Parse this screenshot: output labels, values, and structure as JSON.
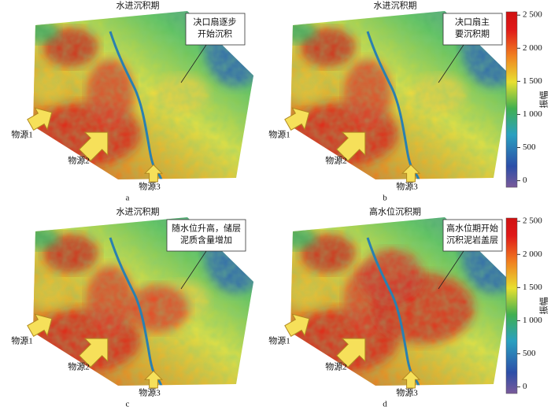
{
  "panels": [
    {
      "title": "水进沉积期",
      "callout": [
        "决口扇逐步",
        "开始沉积"
      ],
      "sources": [
        "物源1",
        "物源2",
        "物源3"
      ],
      "label": "a"
    },
    {
      "title": "水进沉积期",
      "callout": [
        "决口扇主",
        "要沉积期"
      ],
      "sources": [
        "物源1",
        "物源2",
        "物源3"
      ],
      "label": "b"
    },
    {
      "title": "水进沉积期",
      "callout": [
        "随水位升高，储层",
        "泥质含量增加"
      ],
      "sources": [
        "物源1",
        "物源2",
        "物源3"
      ],
      "label": "c"
    },
    {
      "title": "高水位沉积期",
      "callout": [
        "高水位期开始",
        "沉积泥岩盖层"
      ],
      "sources": [
        "物源1",
        "物源2",
        "物源3"
      ],
      "label": "d"
    }
  ],
  "colorbars": [
    {
      "label": "振幅",
      "lim": [
        -100,
        2550
      ],
      "ticks": [
        {
          "value": 2500,
          "label": "2 500"
        },
        {
          "value": 2000,
          "label": "2 000"
        },
        {
          "value": 1500,
          "label": "1 500"
        },
        {
          "value": 1000,
          "label": "1 000"
        },
        500,
        0
      ]
    },
    {
      "label": "振幅",
      "lim": [
        -100,
        2550
      ],
      "ticks": [
        {
          "value": 2500,
          "label": "2 500"
        },
        {
          "value": 2000,
          "label": "2 000"
        },
        {
          "value": 1500,
          "label": "1 500"
        },
        {
          "value": 1000,
          "label": "1 000"
        },
        500,
        0
      ]
    }
  ]
}
